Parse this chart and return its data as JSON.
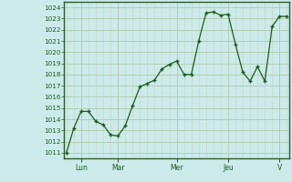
{
  "x_values": [
    0,
    1,
    2,
    3,
    4,
    5,
    6,
    7,
    8,
    9,
    10,
    11,
    12,
    13,
    14,
    15,
    16,
    17,
    18,
    19,
    20,
    21,
    22,
    23,
    24,
    25,
    26,
    27,
    28,
    29,
    30
  ],
  "y_values": [
    1011.0,
    1013.2,
    1014.7,
    1014.7,
    1013.8,
    1013.5,
    1012.6,
    1012.5,
    1013.4,
    1015.2,
    1016.9,
    1017.2,
    1017.5,
    1018.5,
    1018.9,
    1019.2,
    1018.0,
    1018.0,
    1021.0,
    1023.5,
    1023.6,
    1023.3,
    1023.4,
    1020.7,
    1018.2,
    1017.4,
    1018.7,
    1017.4,
    1022.3,
    1023.2,
    1023.2
  ],
  "yticks": [
    1011,
    1012,
    1013,
    1014,
    1015,
    1016,
    1017,
    1018,
    1019,
    1020,
    1021,
    1022,
    1023,
    1024
  ],
  "ylim": [
    1010.5,
    1024.5
  ],
  "xlim": [
    -0.3,
    30.3
  ],
  "xtick_positions": [
    2,
    7,
    15,
    22,
    29
  ],
  "xtick_labels": [
    "Lun",
    "Mar",
    "Mer",
    "Jeu",
    "V"
  ],
  "line_color": "#1a5c1a",
  "marker_color": "#1a5c1a",
  "bg_color": "#cceaea",
  "grid_color_major": "#adc8ad",
  "grid_color_minor": "#bdd8bd",
  "axis_color": "#2d5a2d",
  "tick_label_color": "#1a5c1a"
}
